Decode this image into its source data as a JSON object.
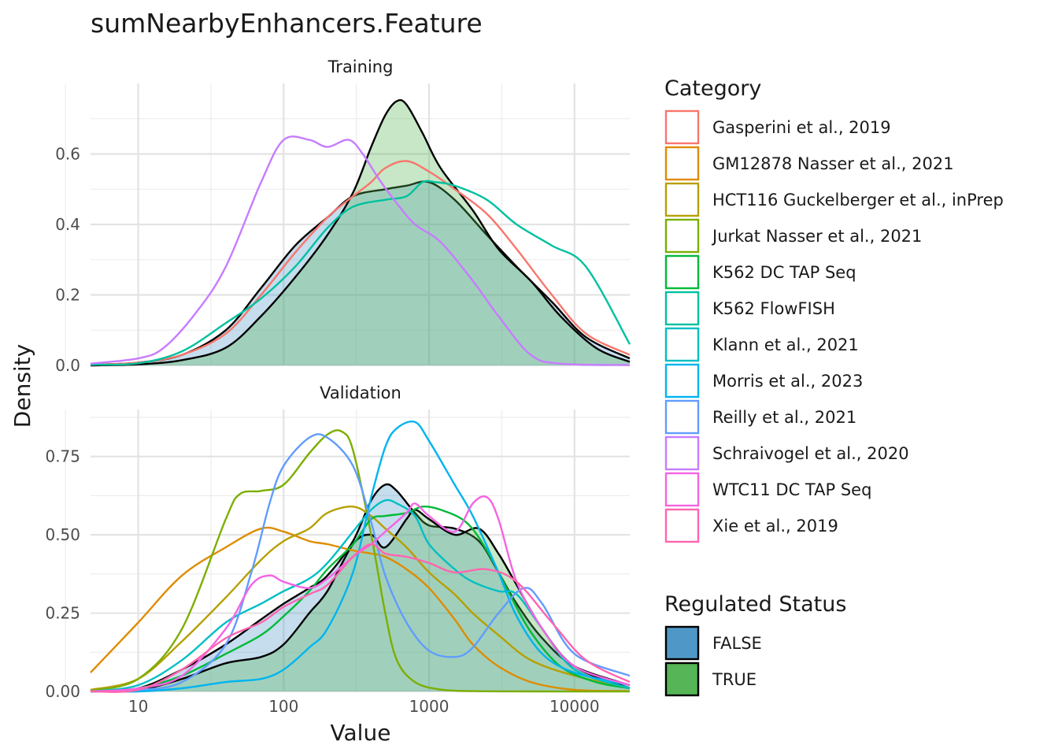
{
  "chart_data": {
    "type": "area",
    "title": "sumNearbyEnhancers.Feature",
    "xlabel": "Value",
    "ylabel": "Density",
    "x_scale": "log10",
    "xlim": [
      4.7,
      24000
    ],
    "x_ticks": [
      10,
      100,
      1000,
      10000
    ],
    "x_tick_labels": [
      "10",
      "100",
      "1000",
      "10000"
    ],
    "grid": true,
    "legend_position": "right",
    "panels": [
      {
        "name": "Training",
        "ylim": [
          0,
          0.8
        ],
        "y_ticks": [
          0,
          0.2,
          0.4,
          0.6
        ],
        "y_tick_labels": [
          "0.0",
          "0.2",
          "0.4",
          "0.6"
        ],
        "filled": [
          {
            "regulated": "FALSE",
            "x": [
              4.7,
              10,
              20,
              40,
              70,
              120,
              200,
              300,
              500,
              700,
              1000,
              1500,
              2500,
              4000,
              7000,
              12000,
              24000
            ],
            "y": [
              0.002,
              0.008,
              0.03,
              0.1,
              0.22,
              0.34,
              0.42,
              0.48,
              0.5,
              0.51,
              0.52,
              0.47,
              0.37,
              0.28,
              0.18,
              0.08,
              0.02
            ]
          },
          {
            "regulated": "TRUE",
            "x": [
              4.7,
              10,
              20,
              40,
              70,
              120,
              200,
              300,
              400,
              500,
              600,
              700,
              900,
              1200,
              2000,
              3000,
              5000,
              8000,
              14000,
              24000
            ],
            "y": [
              0.0,
              0.003,
              0.015,
              0.05,
              0.14,
              0.25,
              0.37,
              0.49,
              0.62,
              0.71,
              0.75,
              0.74,
              0.66,
              0.56,
              0.44,
              0.33,
              0.24,
              0.14,
              0.05,
              0.01
            ]
          }
        ],
        "series": [
          {
            "name": "Gasperini et al., 2019",
            "color": "#F8766D",
            "x": [
              4.7,
              10,
              20,
              40,
              70,
              120,
              200,
              300,
              400,
              500,
              700,
              1000,
              1500,
              2500,
              4000,
              7000,
              12000,
              24000
            ],
            "y": [
              0.002,
              0.008,
              0.03,
              0.09,
              0.2,
              0.32,
              0.42,
              0.48,
              0.52,
              0.56,
              0.58,
              0.55,
              0.5,
              0.43,
              0.33,
              0.2,
              0.09,
              0.03
            ]
          },
          {
            "name": "K562 FlowFISH",
            "color": "#00C19F",
            "x": [
              4.7,
              10,
              20,
              40,
              70,
              120,
              200,
              300,
              500,
              700,
              900,
              1100,
              1500,
              2500,
              4000,
              7000,
              12000,
              24000
            ],
            "y": [
              0.002,
              0.006,
              0.04,
              0.12,
              0.19,
              0.28,
              0.39,
              0.45,
              0.47,
              0.48,
              0.52,
              0.52,
              0.51,
              0.47,
              0.4,
              0.34,
              0.28,
              0.06
            ]
          },
          {
            "name": "Schraivogel et al., 2020",
            "color": "#C77CFF",
            "x": [
              4.7,
              10,
              15,
              25,
              40,
              70,
              100,
              150,
              200,
              280,
              350,
              450,
              600,
              800,
              1200,
              2000,
              3000,
              5000,
              8000,
              24000
            ],
            "y": [
              0.005,
              0.02,
              0.05,
              0.15,
              0.28,
              0.52,
              0.64,
              0.64,
              0.62,
              0.64,
              0.6,
              0.53,
              0.46,
              0.4,
              0.35,
              0.24,
              0.14,
              0.03,
              0.005,
              0.001
            ]
          }
        ]
      },
      {
        "name": "Validation",
        "ylim": [
          0,
          0.9
        ],
        "y_ticks": [
          0,
          0.25,
          0.5,
          0.75
        ],
        "y_tick_labels": [
          "0.00",
          "0.25",
          "0.50",
          "0.75"
        ],
        "filled": [
          {
            "regulated": "FALSE",
            "x": [
              4.7,
              10,
              20,
              40,
              70,
              100,
              150,
              200,
              300,
              400,
              500,
              600,
              800,
              1000,
              1500,
              2200,
              3000,
              4000,
              6000,
              10000,
              24000
            ],
            "y": [
              0.0,
              0.01,
              0.07,
              0.15,
              0.23,
              0.28,
              0.33,
              0.37,
              0.48,
              0.61,
              0.66,
              0.64,
              0.57,
              0.53,
              0.52,
              0.48,
              0.38,
              0.28,
              0.17,
              0.08,
              0.02
            ]
          },
          {
            "regulated": "TRUE",
            "x": [
              4.7,
              10,
              20,
              40,
              70,
              100,
              150,
              200,
              300,
              400,
              500,
              700,
              800,
              1000,
              1500,
              2200,
              3000,
              4000,
              6000,
              10000,
              24000
            ],
            "y": [
              0.0,
              0.005,
              0.04,
              0.09,
              0.11,
              0.15,
              0.25,
              0.32,
              0.47,
              0.5,
              0.46,
              0.55,
              0.58,
              0.55,
              0.5,
              0.52,
              0.44,
              0.34,
              0.2,
              0.08,
              0.01
            ]
          }
        ],
        "series": [
          {
            "name": "GM12878 Nasser et al., 2021",
            "color": "#DE8C00",
            "x": [
              4.7,
              10,
              20,
              40,
              70,
              100,
              150,
              200,
              300,
              400,
              500,
              700,
              1000,
              1500,
              2000,
              3000,
              5000,
              10000,
              24000
            ],
            "y": [
              0.06,
              0.22,
              0.37,
              0.46,
              0.52,
              0.51,
              0.48,
              0.47,
              0.45,
              0.44,
              0.43,
              0.39,
              0.33,
              0.23,
              0.15,
              0.08,
              0.03,
              0.005,
              0.001
            ]
          },
          {
            "name": "HCT116 Guckelberger et al., inPrep",
            "color": "#B79F00",
            "x": [
              4.7,
              10,
              20,
              40,
              70,
              100,
              150,
              200,
              300,
              400,
              500,
              700,
              1000,
              1500,
              2000,
              3000,
              5000,
              10000,
              24000
            ],
            "y": [
              0.005,
              0.04,
              0.16,
              0.3,
              0.42,
              0.48,
              0.52,
              0.57,
              0.59,
              0.56,
              0.52,
              0.46,
              0.38,
              0.31,
              0.25,
              0.18,
              0.1,
              0.05,
              0.01
            ]
          },
          {
            "name": "Jurkat Nasser et al., 2021",
            "color": "#7CAE00",
            "x": [
              4.7,
              10,
              20,
              40,
              50,
              70,
              100,
              150,
              200,
              250,
              300,
              400,
              500,
              600,
              800,
              1200,
              2000,
              5000,
              24000
            ],
            "y": [
              0.002,
              0.04,
              0.2,
              0.55,
              0.63,
              0.64,
              0.66,
              0.76,
              0.82,
              0.83,
              0.77,
              0.5,
              0.25,
              0.1,
              0.03,
              0.006,
              0.001,
              0.0,
              0.0
            ]
          },
          {
            "name": "K562 DC TAP Seq",
            "color": "#00BA38",
            "x": [
              4.7,
              10,
              20,
              40,
              70,
              100,
              150,
              200,
              300,
              400,
              500,
              700,
              900,
              1200,
              1800,
              2500,
              3500,
              5000,
              8000,
              14000,
              24000
            ],
            "y": [
              0.0,
              0.01,
              0.05,
              0.12,
              0.18,
              0.24,
              0.32,
              0.39,
              0.47,
              0.55,
              0.56,
              0.57,
              0.59,
              0.58,
              0.54,
              0.45,
              0.32,
              0.19,
              0.08,
              0.03,
              0.01
            ]
          },
          {
            "name": "Klann et al., 2021",
            "color": "#00BFC4",
            "x": [
              4.7,
              10,
              20,
              40,
              70,
              100,
              150,
              200,
              300,
              400,
              500,
              600,
              800,
              1000,
              1500,
              2000,
              3000,
              4000,
              6000,
              10000,
              24000
            ],
            "y": [
              0.0,
              0.02,
              0.1,
              0.22,
              0.28,
              0.32,
              0.36,
              0.41,
              0.51,
              0.58,
              0.61,
              0.6,
              0.56,
              0.47,
              0.39,
              0.35,
              0.32,
              0.31,
              0.2,
              0.07,
              0.01
            ]
          },
          {
            "name": "Morris et al., 2023",
            "color": "#00B4F0",
            "x": [
              4.7,
              10,
              20,
              40,
              70,
              100,
              150,
              200,
              300,
              400,
              500,
              600,
              800,
              1000,
              1500,
              2000,
              3000,
              4000,
              6000,
              10000,
              24000
            ],
            "y": [
              0.0,
              0.0,
              0.01,
              0.03,
              0.04,
              0.07,
              0.14,
              0.2,
              0.38,
              0.62,
              0.78,
              0.84,
              0.86,
              0.8,
              0.66,
              0.56,
              0.38,
              0.24,
              0.12,
              0.06,
              0.02
            ]
          },
          {
            "name": "Reilly et al., 2021",
            "color": "#619CFF",
            "x": [
              4.7,
              10,
              20,
              40,
              60,
              80,
              100,
              150,
              200,
              300,
              400,
              500,
              700,
              1000,
              1500,
              2000,
              3000,
              4500,
              6000,
              10000,
              24000
            ],
            "y": [
              0.0,
              0.005,
              0.03,
              0.15,
              0.38,
              0.6,
              0.72,
              0.81,
              0.81,
              0.72,
              0.54,
              0.37,
              0.22,
              0.13,
              0.11,
              0.14,
              0.25,
              0.33,
              0.28,
              0.12,
              0.05
            ]
          },
          {
            "name": "WTC11 DC TAP Seq",
            "color": "#F564E3",
            "x": [
              4.7,
              10,
              20,
              40,
              60,
              80,
              100,
              150,
              200,
              300,
              400,
              500,
              700,
              800,
              1000,
              1500,
              2000,
              2500,
              3000,
              4000,
              6000,
              10000,
              24000
            ],
            "y": [
              0.0,
              0.01,
              0.05,
              0.2,
              0.34,
              0.37,
              0.35,
              0.33,
              0.36,
              0.43,
              0.47,
              0.51,
              0.57,
              0.6,
              0.56,
              0.51,
              0.6,
              0.62,
              0.55,
              0.35,
              0.2,
              0.08,
              0.02
            ]
          },
          {
            "name": "Xie et al., 2019",
            "color": "#FF64B0",
            "x": [
              4.7,
              10,
              20,
              40,
              70,
              100,
              150,
              200,
              300,
              400,
              500,
              700,
              1000,
              1500,
              2500,
              4000,
              7000,
              12000,
              24000
            ],
            "y": [
              0.0,
              0.005,
              0.07,
              0.17,
              0.22,
              0.27,
              0.31,
              0.34,
              0.43,
              0.47,
              0.44,
              0.43,
              0.41,
              0.38,
              0.39,
              0.35,
              0.22,
              0.1,
              0.03
            ]
          }
        ]
      }
    ],
    "category_legend": {
      "title": "Category",
      "entries": [
        {
          "label": "Gasperini et al., 2019",
          "color": "#F8766D"
        },
        {
          "label": "GM12878 Nasser et al., 2021",
          "color": "#DE8C00"
        },
        {
          "label": "HCT116 Guckelberger et al., inPrep",
          "color": "#B79F00"
        },
        {
          "label": "Jurkat Nasser et al., 2021",
          "color": "#7CAE00"
        },
        {
          "label": "K562 DC TAP Seq",
          "color": "#00BA38"
        },
        {
          "label": "K562 FlowFISH",
          "color": "#00C19F"
        },
        {
          "label": "Klann et al., 2021",
          "color": "#00BFC4"
        },
        {
          "label": "Morris et al., 2023",
          "color": "#00B4F0"
        },
        {
          "label": "Reilly et al., 2021",
          "color": "#619CFF"
        },
        {
          "label": "Schraivogel et al., 2020",
          "color": "#C77CFF"
        },
        {
          "label": "WTC11 DC TAP Seq",
          "color": "#F564E3"
        },
        {
          "label": "Xie et al., 2019",
          "color": "#FF64B0"
        }
      ]
    },
    "fill_legend": {
      "title": "Regulated Status",
      "entries": [
        {
          "label": "FALSE",
          "color": "#4F97C7"
        },
        {
          "label": "TRUE",
          "color": "#56B556"
        }
      ]
    }
  }
}
